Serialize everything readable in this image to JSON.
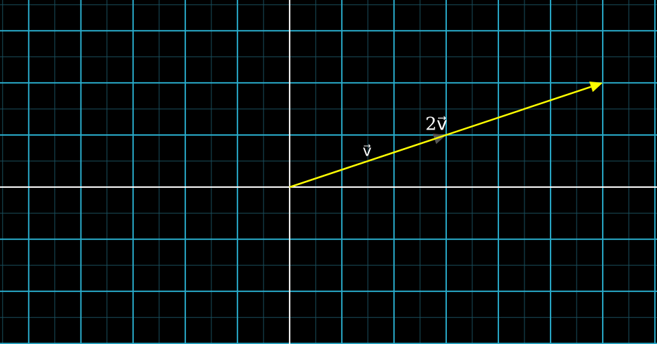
{
  "plane": {
    "x_range": [
      -5.55,
      7.04
    ],
    "y_range": [
      -3.01,
      3.59
    ],
    "major_step": 1,
    "minor_step": 0.5,
    "colors": {
      "major": "#29abca",
      "minor": "#1a4f5e",
      "axes": "#ffffff",
      "background": "#000000"
    }
  },
  "vectors": [
    {
      "name": "v",
      "label": "v⃗",
      "x": 3,
      "y": 1,
      "color": "#555555",
      "label_color": "#777777"
    },
    {
      "name": "2v",
      "label": "2v⃗",
      "x": 6,
      "y": 2,
      "color": "#ffff00",
      "label_color": "#ffffff"
    }
  ]
}
